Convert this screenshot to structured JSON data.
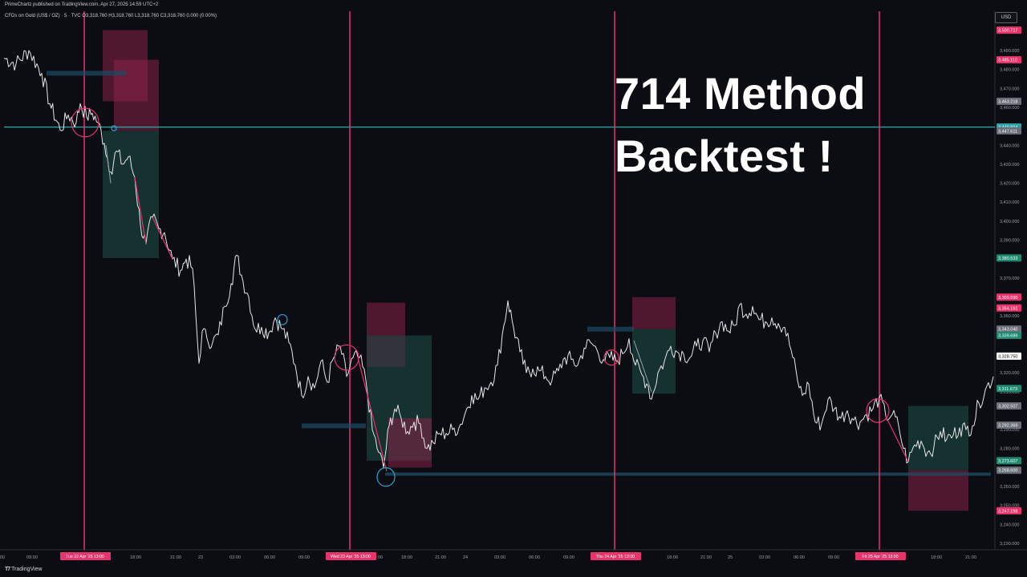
{
  "header": {
    "published": "PrimeChartz published on TradingView.com, Apr 27, 2025 14:59 UTC+2",
    "symbol_line": "CFDs on Gold (US$ / OZ) · 5 · TVC  O3,318.760 H3,318.760 L3,318.760 C3,318.760 0.000 (0.00%)"
  },
  "overlay_text": {
    "line1": "714 Method",
    "line2": "Backtest !"
  },
  "currency_button": "USD",
  "footer": {
    "brand": "TradingView",
    "logo_icon": "tradingview-logo-icon"
  },
  "colors": {
    "background": "#0b0d12",
    "price_line": "#e6e6e6",
    "session_line": "#e8336b",
    "level_line": "#2aa3a6",
    "stop_zone": "#8a2347",
    "target_zone": "#1c4a45",
    "grid_label": "#9aa0ab"
  },
  "chart_data": {
    "type": "line",
    "title": "",
    "xlabel": "",
    "ylabel": "",
    "ylim": [
      3230,
      3505
    ],
    "y_ticks": [
      "3,490.000",
      "3,480.000",
      "3,470.000",
      "3,460.000",
      "3,440.000",
      "3,430.000",
      "3,420.000",
      "3,410.000",
      "3,400.000",
      "3,390.000",
      "3,370.000",
      "3,360.000",
      "3,350.000",
      "3,320.000",
      "3,310.000",
      "3,290.000",
      "3,280.000",
      "3,260.000",
      "3,250.000",
      "3,240.000",
      "3,230.000"
    ],
    "y_tick_values": [
      3490,
      3480,
      3470,
      3460,
      3440,
      3430,
      3420,
      3410,
      3400,
      3390,
      3370,
      3360,
      3350,
      3320,
      3310,
      3290,
      3280,
      3260,
      3250,
      3240,
      3230
    ],
    "x_ticks": [
      ":00",
      "09:00",
      "15:00",
      "18:00",
      "21:00",
      "23",
      "03:00",
      "06:00",
      "09:00",
      "15:00",
      "18:00",
      "21:00",
      "24",
      "03:00",
      "06:00",
      "09:00",
      "18:00",
      "21:00",
      "25",
      "03:00",
      "06:00",
      "09:00",
      "18:00",
      "21:00"
    ],
    "x_tick_index": [
      2,
      40,
      110,
      169,
      219,
      250,
      293,
      336,
      379,
      470,
      507,
      549,
      580,
      623,
      666,
      709,
      838,
      880,
      910,
      953,
      996,
      1039,
      1167,
      1210
    ],
    "session_markers": [
      {
        "label": "Tue 22 Apr '25   13:00",
        "x_index": 105
      },
      {
        "label": "Wed 23 Apr '25   13:00",
        "x_index": 436
      },
      {
        "label": "Thu 24 Apr '25   13:00",
        "x_index": 766
      },
      {
        "label": "Fri 25 Apr '25   13:00",
        "x_index": 1096
      }
    ],
    "price_badges": [
      {
        "label": "3,500.717",
        "value": 3500.717,
        "color": "#e8336b"
      },
      {
        "label": "3,485.110",
        "value": 3485.11,
        "color": "#e8336b"
      },
      {
        "label": "3,463.218",
        "value": 3463.218,
        "color": "#6b6f78"
      },
      {
        "label": "3,449.604",
        "value": 3449.604,
        "color": "#2aa3a6"
      },
      {
        "label": "3,447.611",
        "value": 3447.611,
        "color": "#6b6f78"
      },
      {
        "label": "3,380.533",
        "value": 3380.533,
        "color": "#1f8a70"
      },
      {
        "label": "3,359.890",
        "value": 3359.89,
        "color": "#e8336b"
      },
      {
        "label": "3,354.161",
        "value": 3354.161,
        "color": "#e8336b"
      },
      {
        "label": "3,343.040",
        "value": 3343.04,
        "color": "#6b6f78"
      },
      {
        "label": "3,339.689",
        "value": 3339.689,
        "color": "#1f8a70"
      },
      {
        "label": "3,328.750",
        "value": 3328.75,
        "color": "#ffffff"
      },
      {
        "label": "3,311.673",
        "value": 3311.673,
        "color": "#1f8a70"
      },
      {
        "label": "3,302.507",
        "value": 3302.507,
        "color": "#6b6f78"
      },
      {
        "label": "3,292.369",
        "value": 3292.369,
        "color": "#6b6f78"
      },
      {
        "label": "3,273.607",
        "value": 3273.607,
        "color": "#1f8a70"
      },
      {
        "label": "3,268.600",
        "value": 3268.6,
        "color": "#6b6f78"
      },
      {
        "label": "3,247.198",
        "value": 3247.198,
        "color": "#e8336b"
      }
    ],
    "horizontal_levels": [
      {
        "value": 3449.604,
        "from_index": 5,
        "to_index": 1240,
        "color": "#2aa3a6"
      },
      {
        "value": 3266.5,
        "from_index": 480,
        "to_index": 1235,
        "color": "#1d4a63"
      }
    ],
    "zones": [
      {
        "type": "stop",
        "from_index": 128,
        "to_index": 184,
        "y_top": 3500.717,
        "y_bottom": 3463.2
      },
      {
        "type": "stop",
        "from_index": 142,
        "to_index": 198,
        "y_top": 3485.11,
        "y_bottom": 3447.611
      },
      {
        "type": "target",
        "from_index": 128,
        "to_index": 198,
        "y_top": 3447.611,
        "y_bottom": 3380.533
      },
      {
        "type": "stop",
        "from_index": 457,
        "to_index": 505,
        "y_top": 3357.0,
        "y_bottom": 3323.0
      },
      {
        "type": "target",
        "from_index": 457,
        "to_index": 538,
        "y_top": 3339.689,
        "y_bottom": 3273.607
      },
      {
        "type": "stop",
        "from_index": 484,
        "to_index": 538,
        "y_top": 3296.0,
        "y_bottom": 3270.0
      },
      {
        "type": "stop",
        "from_index": 788,
        "to_index": 842,
        "y_top": 3359.89,
        "y_bottom": 3343.04
      },
      {
        "type": "target",
        "from_index": 788,
        "to_index": 842,
        "y_top": 3343.04,
        "y_bottom": 3309.0
      },
      {
        "type": "stop",
        "from_index": 1132,
        "to_index": 1207,
        "y_top": 3268.6,
        "y_bottom": 3247.198
      },
      {
        "type": "target",
        "from_index": 1132,
        "to_index": 1207,
        "y_top": 3302.507,
        "y_bottom": 3268.6
      }
    ],
    "series_x": [
      5,
      20,
      36,
      52,
      62,
      75,
      85,
      95,
      100,
      108,
      115,
      122,
      130,
      138,
      145,
      153,
      160,
      168,
      175,
      182,
      190,
      198,
      205,
      215,
      225,
      232,
      240,
      248,
      252,
      258,
      265,
      272,
      280,
      288,
      295,
      303,
      310,
      318,
      326,
      335,
      343,
      352,
      360,
      368,
      376,
      384,
      392,
      400,
      408,
      416,
      424,
      432,
      440,
      448,
      456,
      464,
      472,
      478,
      485,
      492,
      500,
      508,
      516,
      524,
      532,
      540,
      548,
      556,
      564,
      572,
      580,
      588,
      596,
      604,
      612,
      620,
      628,
      633,
      640,
      648,
      656,
      664,
      672,
      680,
      688,
      696,
      704,
      712,
      720,
      728,
      736,
      744,
      752,
      760,
      768,
      776,
      784,
      792,
      800,
      808,
      812,
      820,
      828,
      836,
      844,
      852,
      860,
      868,
      876,
      884,
      892,
      900,
      908,
      916,
      922,
      930,
      938,
      946,
      954,
      962,
      970,
      978,
      986,
      994,
      1000,
      1008,
      1016,
      1024,
      1032,
      1040,
      1048,
      1056,
      1064,
      1072,
      1080,
      1088,
      1096,
      1104,
      1112,
      1120,
      1126,
      1132,
      1140,
      1148,
      1156,
      1164,
      1172,
      1180,
      1188,
      1196,
      1204,
      1212,
      1220,
      1228,
      1238
    ],
    "series_values": [
      3486,
      3483,
      3490,
      3478,
      3462,
      3448,
      3456,
      3452,
      3462,
      3455,
      3457,
      3452,
      3441,
      3426,
      3437,
      3430,
      3434,
      3423,
      3398,
      3388,
      3402,
      3396,
      3394,
      3380,
      3374,
      3380,
      3375,
      3325,
      3342,
      3338,
      3336,
      3340,
      3355,
      3367,
      3382,
      3368,
      3360,
      3343,
      3344,
      3341,
      3349,
      3343,
      3336,
      3324,
      3308,
      3318,
      3312,
      3326,
      3315,
      3328,
      3334,
      3318,
      3328,
      3328,
      3316,
      3290,
      3278,
      3270,
      3292,
      3301,
      3296,
      3289,
      3294,
      3293,
      3280,
      3283,
      3288,
      3288,
      3290,
      3291,
      3299,
      3308,
      3306,
      3312,
      3315,
      3324,
      3345,
      3358,
      3344,
      3331,
      3320,
      3322,
      3321,
      3318,
      3316,
      3321,
      3328,
      3327,
      3324,
      3333,
      3336,
      3332,
      3327,
      3328,
      3326,
      3330,
      3338,
      3324,
      3319,
      3313,
      3306,
      3320,
      3326,
      3334,
      3331,
      3330,
      3328,
      3334,
      3337,
      3331,
      3341,
      3347,
      3342,
      3345,
      3356,
      3351,
      3355,
      3348,
      3347,
      3349,
      3346,
      3344,
      3332,
      3316,
      3308,
      3314,
      3294,
      3293,
      3306,
      3301,
      3296,
      3300,
      3295,
      3294,
      3298,
      3301,
      3307,
      3297,
      3298,
      3292,
      3280,
      3273,
      3282,
      3284,
      3278,
      3281,
      3289,
      3285,
      3287,
      3291,
      3290,
      3292,
      3304,
      3311,
      3318
    ]
  }
}
